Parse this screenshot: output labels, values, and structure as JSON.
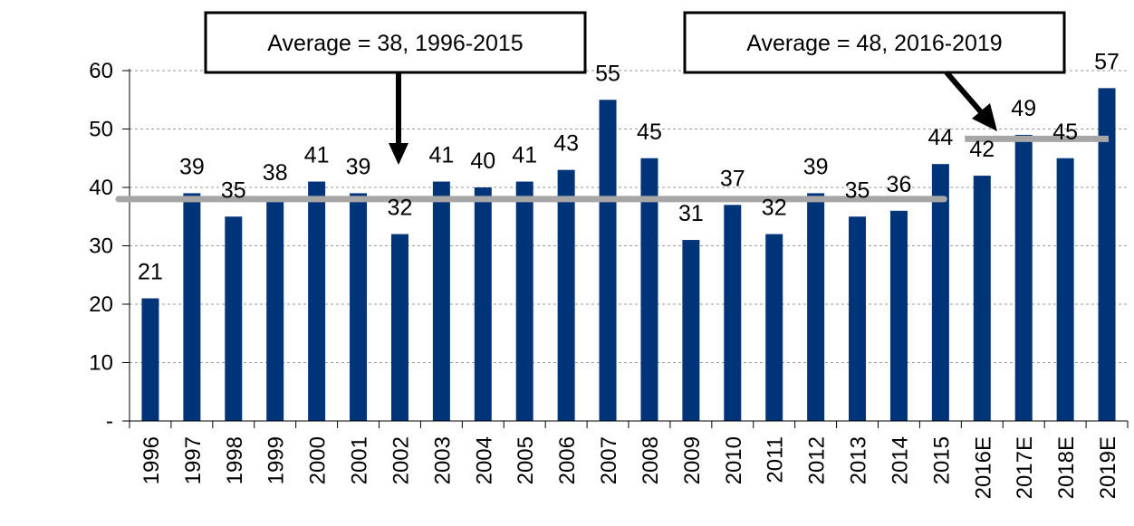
{
  "chart_data": {
    "type": "bar",
    "categories": [
      "1996",
      "1997",
      "1998",
      "1999",
      "2000",
      "2001",
      "2002",
      "2003",
      "2004",
      "2005",
      "2006",
      "2007",
      "2008",
      "2009",
      "2010",
      "2011",
      "2012",
      "2013",
      "2014",
      "2015",
      "2016E",
      "2017E",
      "2018E",
      "2019E"
    ],
    "values": [
      21,
      39,
      35,
      38,
      41,
      39,
      32,
      41,
      40,
      41,
      43,
      55,
      45,
      31,
      37,
      32,
      39,
      35,
      36,
      44,
      42,
      49,
      45,
      57
    ],
    "ylim": [
      0,
      60
    ],
    "yticks": [
      0,
      10,
      20,
      30,
      40,
      50,
      60
    ],
    "ytick_labels": [
      "-",
      "10",
      "20",
      "30",
      "40",
      "50",
      "60"
    ],
    "title": "",
    "xlabel": "",
    "ylabel": "",
    "grid": true,
    "bar_color": "#003478",
    "average_line_color": "#a6a6a6",
    "reference_lines": [
      {
        "label": "Average = 38, 1996-2015",
        "value": 38,
        "from": "1996",
        "to": "2015"
      },
      {
        "label": "Average = 48, 2016-2019",
        "value": 48,
        "from": "2016E",
        "to": "2019E"
      }
    ]
  }
}
